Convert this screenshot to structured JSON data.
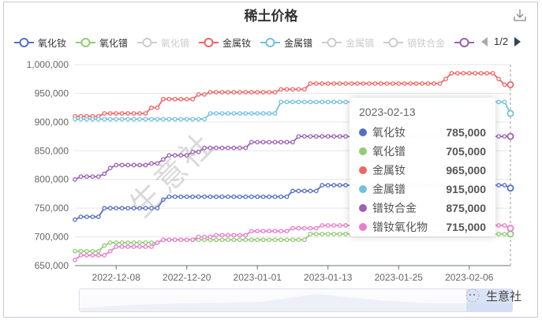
{
  "title": "稀土价格",
  "toolbar": {
    "download_icon": "download-icon"
  },
  "legend": {
    "items": [
      {
        "label": "氧化钕",
        "color": "#5470c6",
        "active": true
      },
      {
        "label": "氧化镨",
        "color": "#91cc75",
        "active": true
      },
      {
        "label": "氧化镝",
        "color": "#cccccc",
        "active": false
      },
      {
        "label": "金属钕",
        "color": "#ee6666",
        "active": true
      },
      {
        "label": "金属镨",
        "color": "#73c0de",
        "active": true
      },
      {
        "label": "金属镝",
        "color": "#cccccc",
        "active": false
      },
      {
        "label": "镝铁合金",
        "color": "#cccccc",
        "active": false
      },
      {
        "label": "",
        "color": "#9a60b4",
        "active": true
      }
    ],
    "page": "1/2"
  },
  "tooltip": {
    "date": "2023-02-13",
    "rows": [
      {
        "name": "氧化钕",
        "value": "785,000",
        "color": "#5470c6"
      },
      {
        "name": "氧化镨",
        "value": "705,000",
        "color": "#91cc75"
      },
      {
        "name": "金属钕",
        "value": "965,000",
        "color": "#ee6666"
      },
      {
        "name": "金属镨",
        "value": "915,000",
        "color": "#73c0de"
      },
      {
        "name": "镨钕合金",
        "value": "875,000",
        "color": "#9a60b4"
      },
      {
        "name": "镨钕氧化物",
        "value": "715,000",
        "color": "#ea7ccc"
      }
    ]
  },
  "watermark": "生意社",
  "brand": "生意社",
  "chart_data": {
    "type": "line",
    "title": "稀土价格",
    "xlabel": "",
    "ylabel": "",
    "ylim": [
      650000,
      1000000
    ],
    "yticks": [
      650000,
      700000,
      750000,
      800000,
      850000,
      900000,
      950000,
      1000000
    ],
    "ytick_labels": [
      "650,000",
      "700,000",
      "750,000",
      "800,000",
      "850,000",
      "900,000",
      "950,000",
      "1,000,000"
    ],
    "xtick_labels": [
      "2022-12-08",
      "2022-12-20",
      "2023-01-01",
      "2023-01-13",
      "2023-01-25",
      "2023-02-06"
    ],
    "x_start": "2022-12-01",
    "x_end": "2023-02-13",
    "grid": true,
    "legend_position": "top",
    "segments_note": "step series: [startDayIndex, value]; day 0 = 2022-12-01, day 74 = 2023-02-13",
    "series": [
      {
        "name": "氧化钕",
        "color": "#5470c6",
        "steps": [
          [
            0,
            730000
          ],
          [
            1,
            735000
          ],
          [
            5,
            750000
          ],
          [
            15,
            765000
          ],
          [
            16,
            770000
          ],
          [
            37,
            780000
          ],
          [
            42,
            790000
          ],
          [
            73,
            790000
          ],
          [
            74,
            785000
          ]
        ]
      },
      {
        "name": "氧化镨",
        "color": "#91cc75",
        "steps": [
          [
            0,
            675000
          ],
          [
            5,
            685000
          ],
          [
            6,
            690000
          ],
          [
            15,
            695000
          ],
          [
            40,
            705000
          ]
        ]
      },
      {
        "name": "金属钕",
        "color": "#ee6666",
        "steps": [
          [
            0,
            910000
          ],
          [
            5,
            915000
          ],
          [
            13,
            925000
          ],
          [
            15,
            940000
          ],
          [
            21,
            948000
          ],
          [
            23,
            952000
          ],
          [
            35,
            957000
          ],
          [
            40,
            967000
          ],
          [
            63,
            975000
          ],
          [
            64,
            985000
          ],
          [
            72,
            975000
          ],
          [
            73,
            965000
          ]
        ]
      },
      {
        "name": "金属镨",
        "color": "#73c0de",
        "steps": [
          [
            0,
            905000
          ],
          [
            23,
            915000
          ],
          [
            35,
            935000
          ],
          [
            74,
            915000
          ]
        ]
      },
      {
        "name": "镨钕合金",
        "color": "#9a60b4",
        "steps": [
          [
            0,
            800000
          ],
          [
            1,
            805000
          ],
          [
            5,
            810000
          ],
          [
            6,
            820000
          ],
          [
            7,
            825000
          ],
          [
            13,
            828000
          ],
          [
            15,
            835000
          ],
          [
            16,
            842000
          ],
          [
            20,
            848000
          ],
          [
            22,
            855000
          ],
          [
            30,
            865000
          ],
          [
            38,
            875000
          ],
          [
            74,
            875000
          ]
        ]
      },
      {
        "name": "镨钕氧化物",
        "color": "#ea7ccc",
        "steps": [
          [
            0,
            660000
          ],
          [
            1,
            668000
          ],
          [
            6,
            675000
          ],
          [
            7,
            683000
          ],
          [
            14,
            690000
          ],
          [
            15,
            695000
          ],
          [
            21,
            700000
          ],
          [
            24,
            703000
          ],
          [
            30,
            710000
          ],
          [
            37,
            715000
          ],
          [
            42,
            720000
          ],
          [
            74,
            715000
          ]
        ]
      }
    ]
  }
}
